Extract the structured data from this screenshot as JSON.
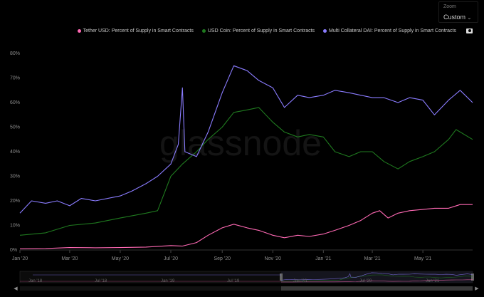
{
  "zoom": {
    "label": "Zoom",
    "value": "Custom"
  },
  "watermark": "glassnode",
  "colors": {
    "tether": "#ff69b4",
    "usdc": "#1f7a1f",
    "dai": "#8a7cff"
  },
  "chart_data": {
    "type": "line",
    "title": "",
    "xlabel": "",
    "ylabel": "",
    "x_ticks": [
      "Jan '20",
      "Mar '20",
      "May '20",
      "Jul '20",
      "Sep '20",
      "Nov '20",
      "Jan '21",
      "Mar '21",
      "May '21"
    ],
    "y_ticks": [
      "0%",
      "10%",
      "20%",
      "30%",
      "40%",
      "50%",
      "60%",
      "70%",
      "80%"
    ],
    "ylim": [
      0,
      80
    ],
    "x_range": [
      "2020-01-01",
      "2021-06-30"
    ],
    "grid": false,
    "legend_position": "top-right",
    "series": [
      {
        "name": "Tether USD: Percent of Supply in Smart Contracts",
        "color": "#ff69b4",
        "points": [
          [
            "2020-01-01",
            0.5
          ],
          [
            "2020-02-01",
            0.6
          ],
          [
            "2020-03-01",
            1.0
          ],
          [
            "2020-04-01",
            0.9
          ],
          [
            "2020-05-01",
            1.0
          ],
          [
            "2020-06-01",
            1.2
          ],
          [
            "2020-07-01",
            1.8
          ],
          [
            "2020-07-15",
            1.6
          ],
          [
            "2020-08-01",
            3.0
          ],
          [
            "2020-08-15",
            6.0
          ],
          [
            "2020-09-01",
            9.0
          ],
          [
            "2020-09-15",
            10.5
          ],
          [
            "2020-10-01",
            9.0
          ],
          [
            "2020-10-15",
            8.0
          ],
          [
            "2020-11-01",
            6.0
          ],
          [
            "2020-11-15",
            5.0
          ],
          [
            "2020-12-01",
            6.0
          ],
          [
            "2020-12-15",
            5.5
          ],
          [
            "2021-01-01",
            6.5
          ],
          [
            "2021-01-15",
            8.0
          ],
          [
            "2021-02-01",
            10.0
          ],
          [
            "2021-02-15",
            12.0
          ],
          [
            "2021-03-01",
            15.0
          ],
          [
            "2021-03-10",
            16.0
          ],
          [
            "2021-03-20",
            13.0
          ],
          [
            "2021-04-01",
            15.0
          ],
          [
            "2021-04-15",
            16.0
          ],
          [
            "2021-05-01",
            16.5
          ],
          [
            "2021-05-15",
            17.0
          ],
          [
            "2021-06-01",
            17.0
          ],
          [
            "2021-06-15",
            18.5
          ],
          [
            "2021-06-30",
            18.5
          ]
        ]
      },
      {
        "name": "USD Coin: Percent of Supply in Smart Contracts",
        "color": "#1f7a1f",
        "points": [
          [
            "2020-01-01",
            6
          ],
          [
            "2020-02-01",
            7
          ],
          [
            "2020-03-01",
            10
          ],
          [
            "2020-04-01",
            11
          ],
          [
            "2020-05-01",
            13
          ],
          [
            "2020-06-01",
            15
          ],
          [
            "2020-06-15",
            16
          ],
          [
            "2020-07-01",
            30
          ],
          [
            "2020-07-15",
            35
          ],
          [
            "2020-08-01",
            40
          ],
          [
            "2020-08-15",
            45
          ],
          [
            "2020-09-01",
            50
          ],
          [
            "2020-09-15",
            56
          ],
          [
            "2020-10-01",
            57
          ],
          [
            "2020-10-15",
            58
          ],
          [
            "2020-11-01",
            52
          ],
          [
            "2020-11-15",
            48
          ],
          [
            "2020-12-01",
            46
          ],
          [
            "2020-12-15",
            47
          ],
          [
            "2021-01-01",
            46
          ],
          [
            "2021-01-15",
            40
          ],
          [
            "2021-02-01",
            38
          ],
          [
            "2021-02-15",
            40
          ],
          [
            "2021-03-01",
            40
          ],
          [
            "2021-03-15",
            36
          ],
          [
            "2021-04-01",
            33
          ],
          [
            "2021-04-15",
            36
          ],
          [
            "2021-05-01",
            38
          ],
          [
            "2021-05-15",
            40
          ],
          [
            "2021-06-01",
            45
          ],
          [
            "2021-06-10",
            49
          ],
          [
            "2021-06-30",
            45
          ]
        ]
      },
      {
        "name": "Multi Collateral DAI: Percent of Supply in Smart Contracts",
        "color": "#8a7cff",
        "points": [
          [
            "2020-01-01",
            15
          ],
          [
            "2020-01-15",
            20
          ],
          [
            "2020-02-01",
            19
          ],
          [
            "2020-02-15",
            20
          ],
          [
            "2020-03-01",
            18
          ],
          [
            "2020-03-15",
            21
          ],
          [
            "2020-04-01",
            20
          ],
          [
            "2020-05-01",
            22
          ],
          [
            "2020-05-15",
            24
          ],
          [
            "2020-06-01",
            27
          ],
          [
            "2020-06-15",
            30
          ],
          [
            "2020-07-01",
            35
          ],
          [
            "2020-07-10",
            43
          ],
          [
            "2020-07-15",
            66
          ],
          [
            "2020-07-18",
            40
          ],
          [
            "2020-08-01",
            38
          ],
          [
            "2020-08-15",
            48
          ],
          [
            "2020-09-01",
            64
          ],
          [
            "2020-09-15",
            75
          ],
          [
            "2020-10-01",
            73
          ],
          [
            "2020-10-15",
            69
          ],
          [
            "2020-11-01",
            66
          ],
          [
            "2020-11-15",
            58
          ],
          [
            "2020-12-01",
            63
          ],
          [
            "2020-12-15",
            62
          ],
          [
            "2021-01-01",
            63
          ],
          [
            "2021-01-15",
            65
          ],
          [
            "2021-02-01",
            64
          ],
          [
            "2021-02-15",
            63
          ],
          [
            "2021-03-01",
            62
          ],
          [
            "2021-03-15",
            62
          ],
          [
            "2021-04-01",
            60
          ],
          [
            "2021-04-15",
            62
          ],
          [
            "2021-05-01",
            61
          ],
          [
            "2021-05-15",
            55
          ],
          [
            "2021-06-01",
            61
          ],
          [
            "2021-06-15",
            65
          ],
          [
            "2021-06-30",
            60
          ]
        ]
      }
    ]
  },
  "navigator": {
    "ticks": [
      "Jan '18",
      "Jul '18",
      "Jan '19",
      "Jul '19",
      "Jan '20",
      "Jul '20",
      "Jan '21"
    ]
  }
}
